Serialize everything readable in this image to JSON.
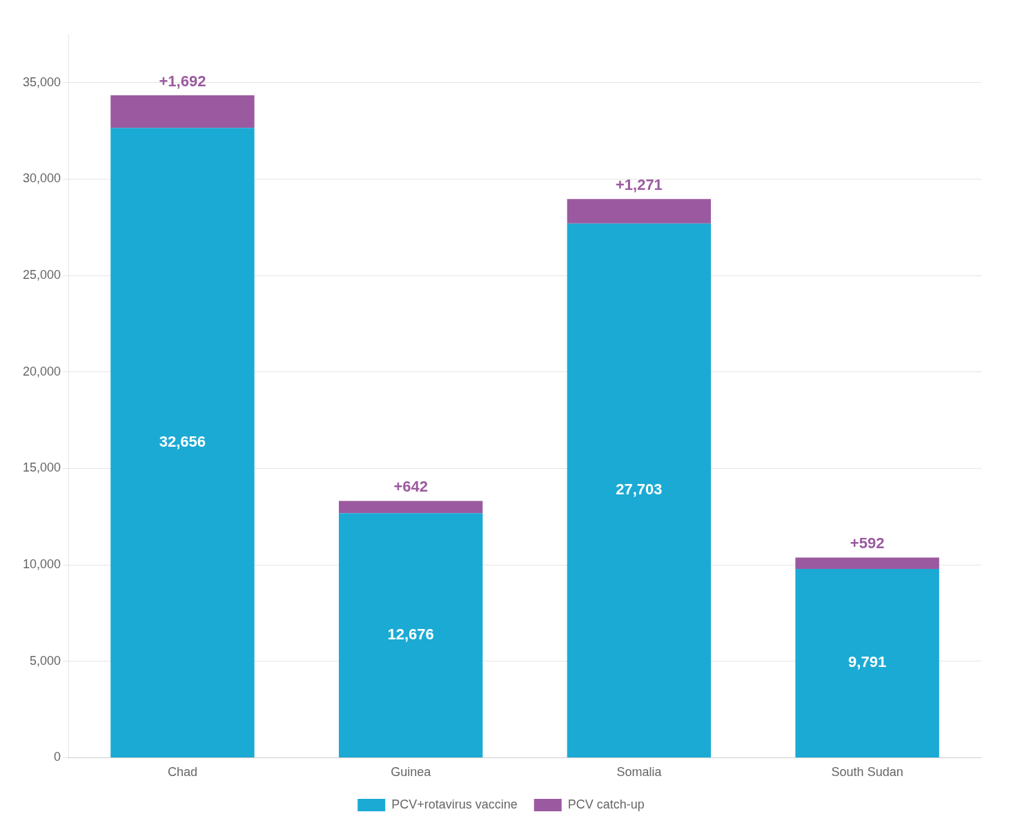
{
  "chart_data": {
    "type": "bar",
    "stacked": true,
    "categories": [
      "Chad",
      "Guinea",
      "Somalia",
      "South Sudan"
    ],
    "series": [
      {
        "name": "PCV+rotavirus vaccine",
        "color": "#1BAAD4",
        "values": [
          32656,
          12676,
          27703,
          9791
        ],
        "value_labels": [
          "32,656",
          "12,676",
          "27,703",
          "9,791"
        ]
      },
      {
        "name": "PCV catch-up",
        "color": "#9B5AA0",
        "values": [
          1692,
          642,
          1271,
          592
        ],
        "value_labels": [
          "+1,692",
          "+642",
          "+1,271",
          "+592"
        ]
      }
    ],
    "ylim": [
      0,
      37500
    ],
    "yticks": [
      0,
      {
        "value": 5000,
        "label": "5,000"
      },
      {
        "value": 10000,
        "label": "10,000"
      },
      {
        "value": 15000,
        "label": "15,000"
      },
      {
        "value": 20000,
        "label": "20,000"
      },
      {
        "value": 25000,
        "label": "25,000"
      },
      {
        "value": 30000,
        "label": "30,000"
      },
      {
        "value": 35000,
        "label": "35,000"
      }
    ],
    "grid": true,
    "legend": "bottom",
    "data_labels": true
  }
}
